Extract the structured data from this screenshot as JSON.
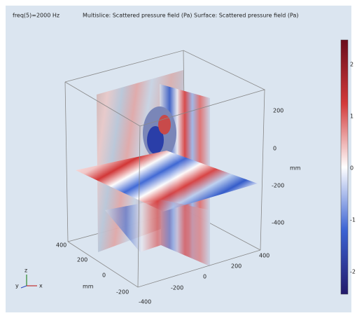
{
  "header": {
    "left": "freq(5)=2000 Hz",
    "center": "Multislice: Scattered pressure field (Pa)  Surface: Scattered pressure field (Pa)"
  },
  "axes": {
    "z_ticks": [
      "200",
      "0",
      "-200",
      "-400"
    ],
    "z_unit": "mm",
    "y_ticks": [
      "400",
      "200",
      "0",
      "-200"
    ],
    "y_unit": "mm",
    "x_ticks": [
      "-400",
      "-200",
      "0",
      "200",
      "400"
    ]
  },
  "colorbar": {
    "ticks": [
      "2",
      "1",
      "0",
      "-1",
      "-2"
    ]
  },
  "triad": {
    "z": "z",
    "y": "y",
    "x": "x"
  }
}
